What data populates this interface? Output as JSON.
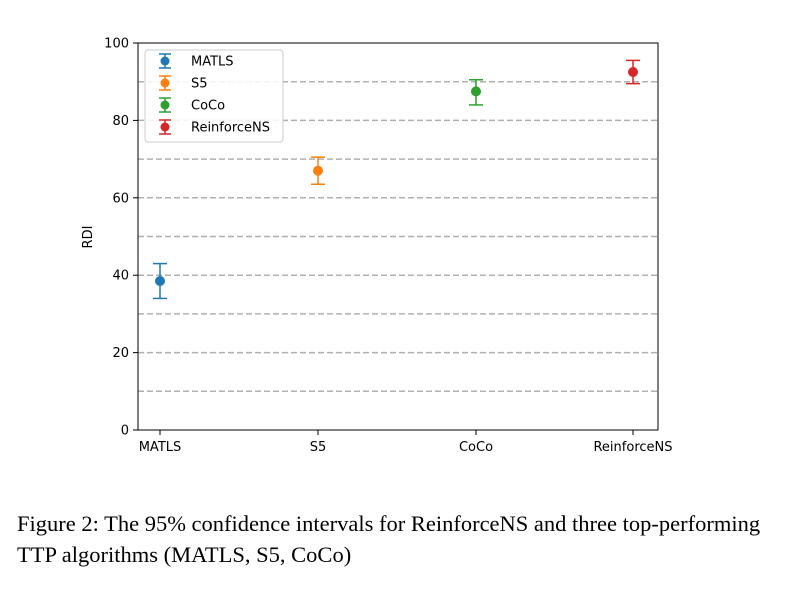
{
  "chart_data": {
    "type": "scatter",
    "subtype": "error-bar",
    "categories": [
      "MATLS",
      "S5",
      "CoCo",
      "ReinforceNS"
    ],
    "series": [
      {
        "name": "MATLS",
        "color": "#1f77b4",
        "category": "MATLS",
        "value": 38.5,
        "lower": 34.0,
        "upper": 43.0
      },
      {
        "name": "S5",
        "color": "#ff7f0e",
        "category": "S5",
        "value": 67.0,
        "lower": 63.5,
        "upper": 70.5
      },
      {
        "name": "CoCo",
        "color": "#2ca02c",
        "category": "CoCo",
        "value": 87.5,
        "lower": 84.0,
        "upper": 90.5
      },
      {
        "name": "ReinforceNS",
        "color": "#d62728",
        "category": "ReinforceNS",
        "value": 92.5,
        "lower": 89.5,
        "upper": 95.5
      }
    ],
    "ylabel": "RDI",
    "xlabel": "",
    "title": "",
    "ylim": [
      0,
      100
    ],
    "yticks": [
      0,
      20,
      40,
      60,
      80,
      100
    ],
    "ytick_labels": [
      "0",
      "20",
      "40",
      "60",
      "80",
      "100"
    ],
    "grid": {
      "axis": "y",
      "style": "dashed",
      "values": [
        10,
        20,
        30,
        40,
        50,
        60,
        70,
        80,
        90
      ],
      "color": "#b0b0b0"
    },
    "legend": "top-left"
  },
  "caption": "Figure 2: The 95% confidence intervals for ReinforceNS and three top-performing TTP algorithms (MATLS, S5, CoCo)"
}
